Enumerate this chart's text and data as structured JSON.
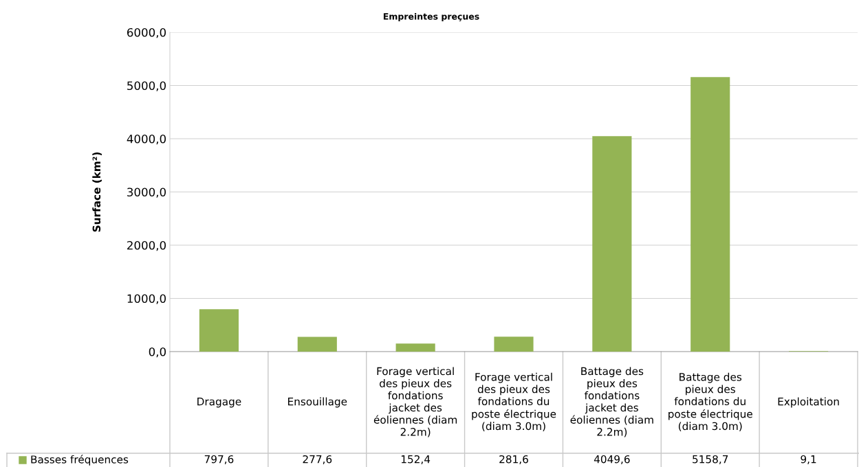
{
  "chart_data": {
    "type": "bar",
    "title": "Empreintes preçues",
    "ylabel": "Surface (km²)",
    "categories": [
      "Dragage",
      "Ensouillage",
      "Forage vertical des pieux des fondations jacket des éoliennes (diam 2.2m)",
      "Forage vertical des pieux des fondations du poste électrique (diam 3.0m)",
      "Battage des pieux des fondations jacket des éoliennes (diam 2.2m)",
      "Battage des pieux des fondations du poste électrique (diam 3.0m)",
      "Exploitation"
    ],
    "series": [
      {
        "name": "Basses fréquences",
        "color": "#94b454",
        "values": [
          797.6,
          277.6,
          152.4,
          281.6,
          4049.6,
          5158.7,
          9.1
        ],
        "value_labels": [
          "797,6",
          "277,6",
          "152,4",
          "281,6",
          "4049,6",
          "5158,7",
          "9,1"
        ]
      }
    ],
    "ylim": [
      0,
      6000
    ],
    "yticks": [
      {
        "value": 0,
        "label": "0,0"
      },
      {
        "value": 1000,
        "label": "1000,0"
      },
      {
        "value": 2000,
        "label": "2000,0"
      },
      {
        "value": 3000,
        "label": "3000,0"
      },
      {
        "value": 4000,
        "label": "4000,0"
      },
      {
        "value": 5000,
        "label": "5000,0"
      },
      {
        "value": 6000,
        "label": "6000,0"
      }
    ],
    "grid": "y",
    "legend": "bottom"
  }
}
